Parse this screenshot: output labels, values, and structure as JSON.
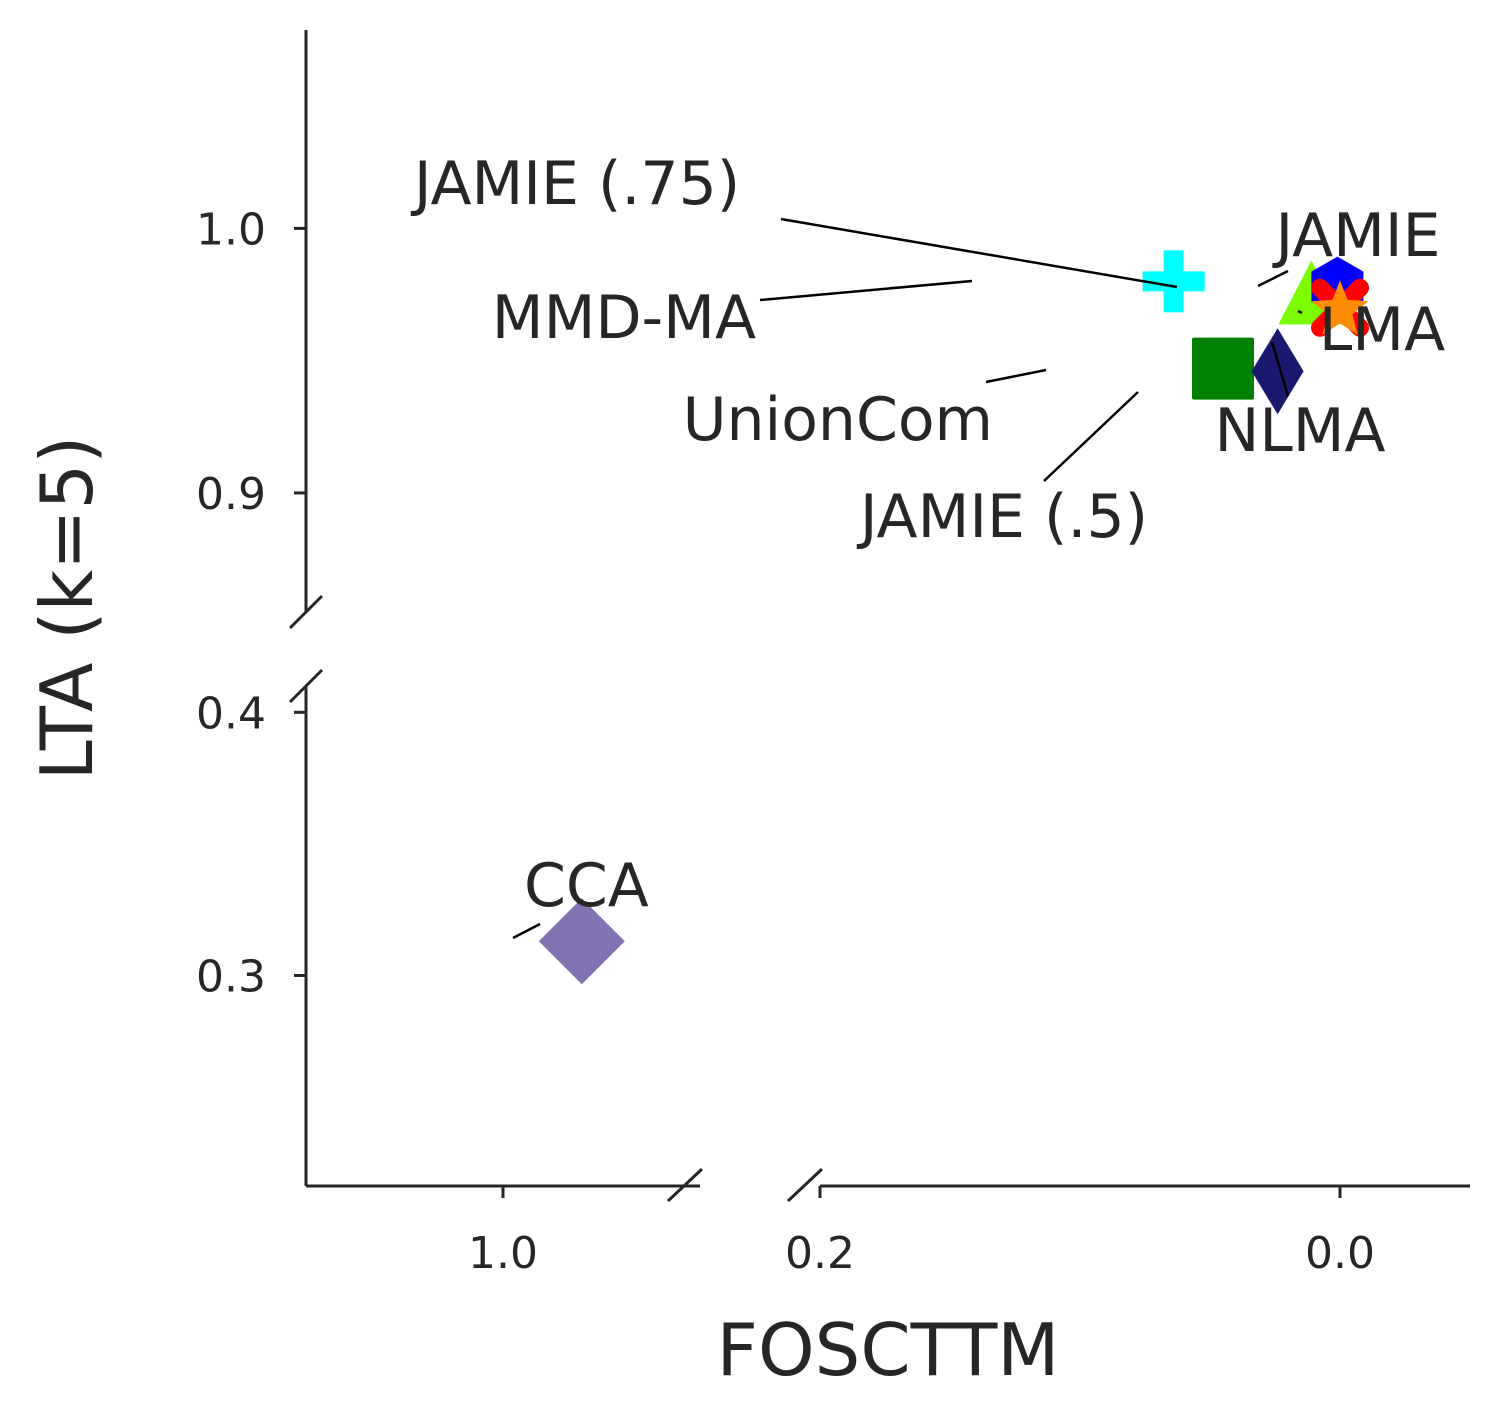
{
  "chart_data": {
    "type": "scatter",
    "xlabel": "FOSCTTM",
    "ylabel": "LTA (k=5)",
    "x_axis": {
      "inverted": true,
      "broken": true,
      "segments": [
        {
          "range": [
            1.1,
            0.9
          ],
          "ticks": [
            1.0
          ],
          "tick_labels": [
            "1.0"
          ]
        },
        {
          "range": [
            0.2,
            -0.05
          ],
          "ticks": [
            0.2,
            0.0
          ],
          "tick_labels": [
            "0.2",
            "0.0"
          ]
        }
      ]
    },
    "y_axis": {
      "broken": true,
      "segments": [
        {
          "range": [
            0.22,
            0.41
          ],
          "ticks": [
            0.3,
            0.4
          ],
          "tick_labels": [
            "0.3",
            "0.4"
          ]
        },
        {
          "range": [
            0.855,
            1.075
          ],
          "ticks": [
            0.9,
            1.0
          ],
          "tick_labels": [
            "0.9",
            "1.0"
          ]
        }
      ]
    },
    "grid": false,
    "legend": "none",
    "points": [
      {
        "label": "CCA",
        "x": 0.96,
        "y": 0.313,
        "marker": "diamond",
        "color": "#8172b2"
      },
      {
        "label": "MMD-MA",
        "x": 0.064,
        "y": 0.98,
        "marker": "plus",
        "color": "#00ffff"
      },
      {
        "label": "UnionCom",
        "x": 0.045,
        "y": 0.947,
        "marker": "square",
        "color": "#008000"
      },
      {
        "label": "JAMIE (.5)",
        "x": 0.024,
        "y": 0.946,
        "marker": "thin_diamond",
        "color": "#191970"
      },
      {
        "label": "JAMIE (.75)",
        "x": 0.011,
        "y": 0.972,
        "marker": "triangle",
        "color": "#7cfc00"
      },
      {
        "label": "JAMIE",
        "x": 0.001,
        "y": 0.978,
        "marker": "hexagon",
        "color": "#0000ff"
      },
      {
        "label": "NLMA",
        "x": 0.0,
        "y": 0.97,
        "marker": "x",
        "color": "#ff0000"
      },
      {
        "label": "LMA",
        "x": 0.0,
        "y": 0.969,
        "marker": "star",
        "color": "#ff8c00"
      }
    ]
  }
}
